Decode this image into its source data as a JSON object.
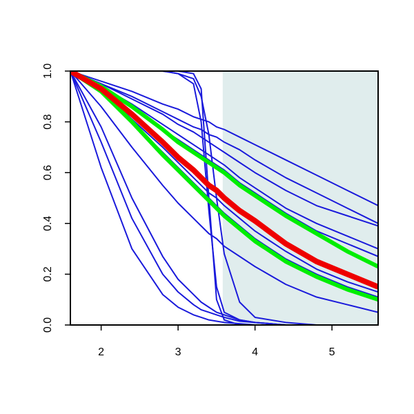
{
  "chart_data": {
    "type": "line",
    "x": [
      1.6,
      2.0,
      2.4,
      2.8,
      3.0,
      3.2,
      3.3,
      3.4,
      3.5,
      3.6,
      3.8,
      4.0,
      4.4,
      4.8,
      5.2,
      5.6
    ],
    "xlim": [
      1.6,
      5.6
    ],
    "ylim": [
      0,
      1
    ],
    "xticks": [
      2,
      3,
      4,
      5
    ],
    "yticks": [
      {
        "value": 0,
        "label": "0.0"
      },
      0.2,
      0.4,
      0.6,
      0.8,
      {
        "value": 1,
        "label": "1.0"
      }
    ],
    "shaded_region": {
      "x": [
        3.58,
        5.6
      ],
      "color": "#e0eded"
    },
    "series": [
      {
        "color": "#1a1adb",
        "width": 2,
        "values": [
          1,
          1,
          1,
          1,
          1,
          0.99,
          0.93,
          0.5,
          0.1,
          0.02,
          0,
          0,
          0,
          0,
          0,
          0
        ]
      },
      {
        "color": "#1a1adb",
        "width": 2,
        "values": [
          1,
          1,
          1,
          1,
          0.99,
          0.95,
          0.8,
          0.45,
          0.15,
          0.05,
          0.02,
          0.01,
          0,
          0,
          0,
          0
        ]
      },
      {
        "color": "#1a1adb",
        "width": 2,
        "values": [
          1,
          1,
          1,
          1,
          0.99,
          0.97,
          0.9,
          0.75,
          0.5,
          0.28,
          0.09,
          0.03,
          0.01,
          0,
          0,
          0
        ]
      },
      {
        "color": "#1a1adb",
        "width": 2,
        "values": [
          1,
          0.62,
          0.3,
          0.12,
          0.07,
          0.04,
          0.03,
          0.02,
          0.015,
          0.01,
          0.005,
          0,
          0,
          0,
          0,
          0
        ]
      },
      {
        "color": "#1a1adb",
        "width": 2,
        "values": [
          1,
          0.72,
          0.42,
          0.2,
          0.13,
          0.08,
          0.06,
          0.05,
          0.04,
          0.03,
          0.015,
          0.01,
          0,
          0,
          0,
          0
        ]
      },
      {
        "color": "#1a1adb",
        "width": 2,
        "values": [
          1,
          0.78,
          0.5,
          0.27,
          0.18,
          0.12,
          0.09,
          0.07,
          0.05,
          0.04,
          0.02,
          0.01,
          0,
          0,
          0,
          0
        ]
      },
      {
        "color": "#1a1adb",
        "width": 2,
        "values": [
          1,
          0.86,
          0.7,
          0.55,
          0.48,
          0.42,
          0.39,
          0.36,
          0.34,
          0.31,
          0.27,
          0.23,
          0.16,
          0.11,
          0.08,
          0.05
        ]
      },
      {
        "color": "#1a1adb",
        "width": 2,
        "values": [
          1,
          0.96,
          0.92,
          0.87,
          0.85,
          0.82,
          0.81,
          0.8,
          0.78,
          0.77,
          0.74,
          0.71,
          0.65,
          0.59,
          0.53,
          0.47
        ]
      },
      {
        "color": "#1a1adb",
        "width": 2,
        "values": [
          1,
          0.95,
          0.9,
          0.84,
          0.81,
          0.78,
          0.77,
          0.75,
          0.74,
          0.72,
          0.69,
          0.65,
          0.58,
          0.52,
          0.46,
          0.4
        ]
      },
      {
        "color": "#1a1adb",
        "width": 2,
        "values": [
          1,
          0.95,
          0.89,
          0.83,
          0.79,
          0.76,
          0.74,
          0.72,
          0.7,
          0.68,
          0.64,
          0.6,
          0.53,
          0.47,
          0.43,
          0.39
        ]
      },
      {
        "color": "#1a1adb",
        "width": 2,
        "values": [
          1,
          0.94,
          0.87,
          0.79,
          0.75,
          0.71,
          0.69,
          0.67,
          0.65,
          0.63,
          0.58,
          0.54,
          0.46,
          0.4,
          0.35,
          0.3
        ]
      },
      {
        "color": "#1a1adb",
        "width": 2,
        "values": [
          1,
          0.94,
          0.86,
          0.77,
          0.73,
          0.69,
          0.67,
          0.65,
          0.63,
          0.61,
          0.56,
          0.52,
          0.44,
          0.37,
          0.32,
          0.27
        ]
      },
      {
        "color": "#1a1adb",
        "width": 2,
        "values": [
          1,
          0.92,
          0.8,
          0.68,
          0.62,
          0.56,
          0.53,
          0.5,
          0.47,
          0.44,
          0.39,
          0.34,
          0.26,
          0.2,
          0.15,
          0.11
        ]
      },
      {
        "color": "#1a1adb",
        "width": 2,
        "values": [
          1,
          0.93,
          0.81,
          0.7,
          0.64,
          0.58,
          0.55,
          0.52,
          0.5,
          0.47,
          0.42,
          0.37,
          0.29,
          0.22,
          0.17,
          0.13
        ]
      },
      {
        "color": "#00ee00",
        "width": 6,
        "values": [
          1,
          0.94,
          0.86,
          0.77,
          0.72,
          0.68,
          0.66,
          0.64,
          0.62,
          0.6,
          0.55,
          0.51,
          0.43,
          0.36,
          0.29,
          0.23
        ]
      },
      {
        "color": "#00ee00",
        "width": 6,
        "values": [
          1,
          0.92,
          0.8,
          0.67,
          0.61,
          0.55,
          0.52,
          0.49,
          0.46,
          0.43,
          0.38,
          0.33,
          0.25,
          0.19,
          0.14,
          0.1
        ]
      },
      {
        "color": "#ee0000",
        "width": 8,
        "values": [
          1,
          0.93,
          0.83,
          0.72,
          0.66,
          0.61,
          0.58,
          0.55,
          0.53,
          0.5,
          0.45,
          0.41,
          0.32,
          0.25,
          0.2,
          0.15
        ]
      }
    ]
  }
}
